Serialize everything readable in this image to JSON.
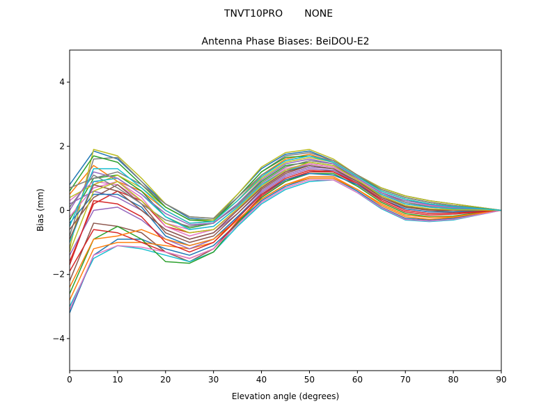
{
  "chart_data": {
    "type": "line",
    "suptitle": "TNVT10PRO       NONE",
    "title": "Antenna Phase Biases: BeiDOU-E2",
    "xlabel": "Elevation angle (degrees)",
    "ylabel": "Bias (mm)",
    "xlim": [
      0,
      90
    ],
    "ylim": [
      -5,
      5
    ],
    "xticks": [
      0,
      10,
      20,
      30,
      40,
      50,
      60,
      70,
      80,
      90
    ],
    "yticks": [
      -4,
      -2,
      0,
      2,
      4
    ],
    "ytick_labels": [
      "−4",
      "−2",
      "0",
      "2",
      "4"
    ],
    "grid": false,
    "legend": "none",
    "colors": [
      "#1f77b4",
      "#ff7f0e",
      "#2ca02c",
      "#d62728",
      "#9467bd",
      "#8c564b",
      "#e377c2",
      "#7f7f7f",
      "#bcbd22",
      "#17becf"
    ],
    "x": [
      0,
      5,
      10,
      15,
      20,
      25,
      30,
      35,
      40,
      45,
      50,
      55,
      60,
      65,
      70,
      75,
      80,
      85,
      90
    ],
    "series": [
      {
        "values": [
          0.8,
          1.85,
          1.6,
          0.9,
          0.2,
          -0.25,
          -0.3,
          0.5,
          1.3,
          1.75,
          1.85,
          1.55,
          1.1,
          0.7,
          0.45,
          0.3,
          0.2,
          0.1,
          0
        ]
      },
      {
        "values": [
          0.5,
          1.4,
          0.9,
          0.6,
          0.0,
          -0.4,
          -0.35,
          0.3,
          1.1,
          1.6,
          1.75,
          1.5,
          1.05,
          0.65,
          0.4,
          0.25,
          0.15,
          0.08,
          0
        ]
      },
      {
        "values": [
          -0.3,
          1.0,
          1.1,
          0.6,
          -0.2,
          -0.55,
          -0.4,
          0.2,
          0.9,
          1.4,
          1.5,
          1.4,
          1.0,
          0.55,
          0.3,
          0.2,
          0.1,
          0.05,
          0
        ]
      },
      {
        "values": [
          -1.6,
          0.2,
          0.6,
          0.3,
          -0.5,
          -0.7,
          -0.6,
          0.0,
          0.7,
          1.2,
          1.45,
          1.35,
          0.95,
          0.5,
          0.2,
          0.1,
          0.05,
          0.02,
          0
        ]
      },
      {
        "values": [
          0.2,
          0.6,
          0.4,
          0.0,
          -0.6,
          -0.9,
          -0.7,
          -0.1,
          0.6,
          1.1,
          1.35,
          1.3,
          0.9,
          0.45,
          0.15,
          0.05,
          0.0,
          0.0,
          0
        ]
      },
      {
        "values": [
          -2.2,
          -0.4,
          -0.5,
          -0.7,
          -1.3,
          -1.6,
          -1.2,
          -0.4,
          0.4,
          0.9,
          1.2,
          1.25,
          0.9,
          0.4,
          0.1,
          0.0,
          -0.05,
          -0.03,
          0
        ]
      },
      {
        "values": [
          0.3,
          0.9,
          0.8,
          0.3,
          -0.4,
          -0.6,
          -0.5,
          0.1,
          0.8,
          1.3,
          1.45,
          1.35,
          0.95,
          0.5,
          0.25,
          0.15,
          0.08,
          0.04,
          0
        ]
      },
      {
        "values": [
          -0.8,
          1.6,
          1.65,
          0.9,
          0.1,
          -0.3,
          -0.3,
          0.4,
          1.2,
          1.7,
          1.8,
          1.55,
          1.1,
          0.7,
          0.45,
          0.3,
          0.2,
          0.1,
          0
        ]
      },
      {
        "values": [
          -1.2,
          1.9,
          1.7,
          1.0,
          0.2,
          -0.2,
          -0.25,
          0.5,
          1.35,
          1.8,
          1.9,
          1.6,
          1.1,
          0.7,
          0.45,
          0.3,
          0.2,
          0.1,
          0
        ]
      },
      {
        "values": [
          -3.0,
          -1.5,
          -1.1,
          -1.2,
          -1.4,
          -1.6,
          -1.3,
          -0.5,
          0.2,
          0.65,
          0.9,
          0.95,
          0.55,
          0.05,
          -0.3,
          -0.35,
          -0.3,
          -0.15,
          0
        ]
      },
      {
        "values": [
          -3.2,
          -1.4,
          -0.9,
          -0.9,
          -1.2,
          -1.4,
          -1.1,
          -0.4,
          0.3,
          0.75,
          1.0,
          1.0,
          0.6,
          0.1,
          -0.25,
          -0.3,
          -0.25,
          -0.12,
          0
        ]
      },
      {
        "values": [
          -2.8,
          -1.2,
          -1.0,
          -1.0,
          -1.1,
          -1.2,
          -1.0,
          -0.3,
          0.35,
          0.8,
          1.05,
          1.05,
          0.65,
          0.15,
          -0.2,
          -0.28,
          -0.22,
          -0.1,
          0
        ]
      },
      {
        "values": [
          -2.6,
          -0.9,
          -0.5,
          -0.9,
          -1.6,
          -1.65,
          -1.3,
          -0.4,
          0.4,
          0.9,
          1.15,
          1.15,
          0.75,
          0.25,
          -0.1,
          -0.2,
          -0.18,
          -0.08,
          0
        ]
      },
      {
        "values": [
          -1.9,
          -0.6,
          -0.7,
          -1.0,
          -1.3,
          -1.5,
          -1.2,
          -0.35,
          0.45,
          0.95,
          1.2,
          1.2,
          0.8,
          0.3,
          -0.05,
          -0.15,
          -0.12,
          -0.06,
          0
        ]
      },
      {
        "values": [
          -1.4,
          0.0,
          0.1,
          -0.3,
          -0.9,
          -1.2,
          -0.9,
          -0.2,
          0.55,
          1.05,
          1.3,
          1.25,
          0.85,
          0.35,
          0.05,
          -0.05,
          -0.05,
          -0.02,
          0
        ]
      },
      {
        "values": [
          -0.6,
          0.4,
          0.8,
          0.2,
          -0.7,
          -1.0,
          -0.8,
          -0.1,
          0.65,
          1.15,
          1.4,
          1.3,
          0.9,
          0.4,
          0.1,
          0.0,
          0.0,
          0.0,
          0
        ]
      },
      {
        "values": [
          -0.2,
          0.7,
          0.9,
          0.4,
          -0.5,
          -0.8,
          -0.6,
          0.0,
          0.75,
          1.25,
          1.45,
          1.35,
          0.95,
          0.45,
          0.15,
          0.05,
          0.02,
          0.01,
          0
        ]
      },
      {
        "values": [
          0.1,
          1.1,
          0.7,
          0.2,
          -0.3,
          -0.5,
          -0.4,
          0.15,
          0.85,
          1.35,
          1.55,
          1.45,
          1.0,
          0.55,
          0.25,
          0.12,
          0.06,
          0.03,
          0
        ]
      },
      {
        "values": [
          0.4,
          0.8,
          1.1,
          0.7,
          0.1,
          -0.3,
          -0.3,
          0.3,
          1.0,
          1.5,
          1.65,
          1.5,
          1.05,
          0.6,
          0.35,
          0.2,
          0.12,
          0.06,
          0
        ]
      },
      {
        "values": [
          -1.0,
          0.9,
          1.0,
          0.5,
          -0.2,
          -0.6,
          -0.5,
          0.1,
          0.8,
          1.25,
          1.4,
          1.3,
          0.9,
          0.5,
          0.2,
          0.1,
          0.05,
          0.02,
          0
        ]
      },
      {
        "values": [
          -0.4,
          0.5,
          0.5,
          0.1,
          -0.8,
          -1.1,
          -0.9,
          -0.2,
          0.5,
          0.95,
          1.15,
          1.1,
          0.8,
          0.35,
          0.05,
          -0.05,
          -0.05,
          -0.02,
          0
        ]
      },
      {
        "values": [
          -2.4,
          -0.9,
          -0.8,
          -0.6,
          -0.9,
          -1.1,
          -0.9,
          -0.3,
          0.35,
          0.8,
          1.0,
          1.0,
          0.65,
          0.2,
          -0.15,
          -0.22,
          -0.2,
          -0.1,
          0
        ]
      },
      {
        "values": [
          0.6,
          1.7,
          1.5,
          0.8,
          0.1,
          -0.3,
          -0.35,
          0.4,
          1.2,
          1.65,
          1.7,
          1.5,
          1.05,
          0.65,
          0.4,
          0.25,
          0.15,
          0.08,
          0
        ]
      },
      {
        "values": [
          -1.7,
          0.3,
          0.2,
          -0.2,
          -1.0,
          -1.3,
          -1.0,
          -0.25,
          0.5,
          1.0,
          1.25,
          1.2,
          0.85,
          0.35,
          0.0,
          -0.1,
          -0.08,
          -0.04,
          0
        ]
      },
      {
        "values": [
          0.0,
          1.2,
          1.0,
          0.5,
          -0.1,
          -0.45,
          -0.4,
          0.2,
          0.95,
          1.45,
          1.6,
          1.45,
          1.0,
          0.55,
          0.3,
          0.18,
          0.1,
          0.05,
          0
        ]
      },
      {
        "values": [
          -0.9,
          0.8,
          0.6,
          0.0,
          -0.6,
          -0.9,
          -0.7,
          0.0,
          0.7,
          1.2,
          1.4,
          1.3,
          0.9,
          0.45,
          0.12,
          0.02,
          0.0,
          0.0,
          0
        ]
      },
      {
        "values": [
          -3.1,
          -1.4,
          -1.1,
          -1.15,
          -1.3,
          -1.5,
          -1.2,
          -0.45,
          0.25,
          0.7,
          0.95,
          0.95,
          0.55,
          0.08,
          -0.28,
          -0.33,
          -0.28,
          -0.14,
          0
        ]
      },
      {
        "values": [
          0.7,
          1.0,
          1.2,
          0.8,
          0.2,
          -0.2,
          -0.25,
          0.4,
          1.1,
          1.55,
          1.7,
          1.55,
          1.1,
          0.65,
          0.4,
          0.25,
          0.15,
          0.07,
          0
        ]
      },
      {
        "values": [
          -1.3,
          0.6,
          0.9,
          0.3,
          -0.4,
          -0.7,
          -0.6,
          0.05,
          0.75,
          1.25,
          1.5,
          1.4,
          0.95,
          0.45,
          0.15,
          0.05,
          0.02,
          0.01,
          0
        ]
      },
      {
        "values": [
          -0.5,
          1.3,
          1.3,
          0.7,
          0.0,
          -0.4,
          -0.35,
          0.3,
          1.05,
          1.55,
          1.7,
          1.5,
          1.05,
          0.6,
          0.35,
          0.2,
          0.12,
          0.06,
          0
        ]
      }
    ]
  }
}
